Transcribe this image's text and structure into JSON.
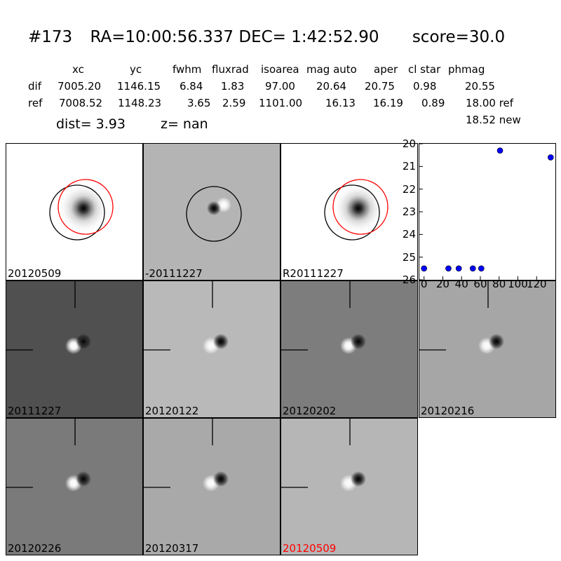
{
  "header": {
    "id": "#173",
    "coords": "RA=10:00:56.337 DEC= 1:42:52.90",
    "score": "score=30.0"
  },
  "table": {
    "columns": [
      "xc",
      "yc",
      "fwhm",
      "fluxrad",
      "isoarea",
      "mag auto",
      "aper",
      "cl star",
      "phmag"
    ],
    "rows": [
      {
        "label": "dif",
        "values": [
          "7005.20",
          "1146.15",
          "6.84",
          "1.83",
          "97.00",
          "20.64",
          "20.75",
          "0.98",
          "20.55"
        ]
      },
      {
        "label": "ref",
        "values": [
          "7008.52",
          "1148.23",
          "3.65",
          "2.59",
          "1101.00",
          "16.13",
          "16.19",
          "0.89",
          "18.00 ref"
        ]
      }
    ],
    "extra": "18.52 new"
  },
  "dist_line": {
    "dist": "dist=  3.93",
    "z": "z=   nan"
  },
  "panels": [
    {
      "label": "20120509",
      "bg": "#ffffff",
      "kind": "ref-circles",
      "label_color": "#000000"
    },
    {
      "label": "-20111227",
      "bg": "#b4b4b4",
      "kind": "diff-circle",
      "label_color": "#000000"
    },
    {
      "label": "R20111227",
      "bg": "#ffffff",
      "kind": "ref-circles",
      "label_color": "#000000"
    },
    {
      "label": "20111227",
      "bg": "#505050",
      "kind": "stamp",
      "label_color": "#000000"
    },
    {
      "label": "20120122",
      "bg": "#b9b9b9",
      "kind": "stamp",
      "label_color": "#000000"
    },
    {
      "label": "20120202",
      "bg": "#7d7d7d",
      "kind": "stamp",
      "label_color": "#000000"
    },
    {
      "label": "20120216",
      "bg": "#a6a6a6",
      "kind": "stamp",
      "label_color": "#000000"
    },
    {
      "label": "20120226",
      "bg": "#7a7a7a",
      "kind": "stamp",
      "label_color": "#000000"
    },
    {
      "label": "20120317",
      "bg": "#a9a9a9",
      "kind": "stamp",
      "label_color": "#000000"
    },
    {
      "label": "20120509",
      "bg": "#b6b6b6",
      "kind": "stamp",
      "label_color": "#ff0000"
    }
  ],
  "chart_data": {
    "type": "scatter",
    "title": "",
    "xlabel": "",
    "ylabel": "",
    "xlim": [
      -5,
      140
    ],
    "ylim": [
      26,
      20
    ],
    "x_ticks": [
      "0",
      "20",
      "40",
      "60",
      "80",
      "100",
      "120"
    ],
    "y_ticks": [
      "20",
      "21",
      "22",
      "23",
      "24",
      "25",
      "26"
    ],
    "x": [
      0,
      26,
      37,
      52,
      61,
      81,
      135
    ],
    "y": [
      25.5,
      25.5,
      25.5,
      25.5,
      25.5,
      20.3,
      20.6
    ],
    "color": "#0000ff"
  }
}
